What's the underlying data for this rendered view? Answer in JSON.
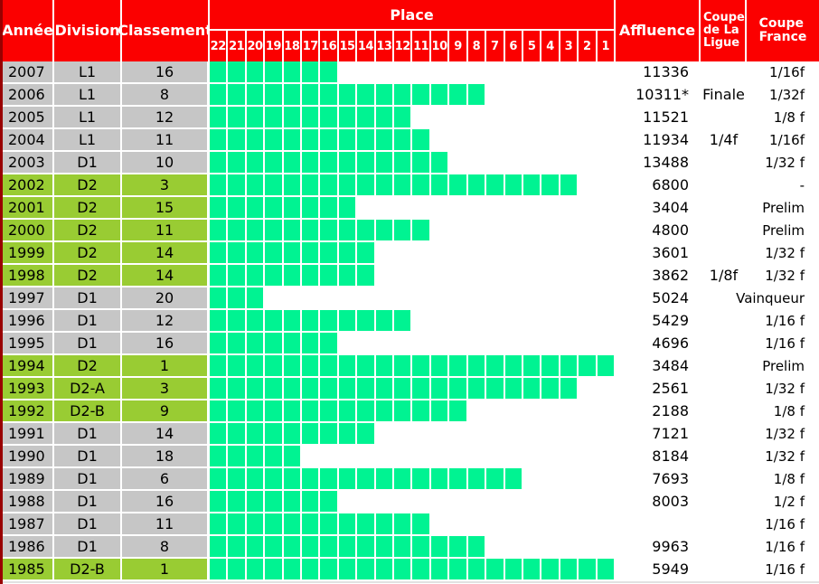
{
  "colors": {
    "header_bg": "#FB0000",
    "header_text": "#FFFFFF",
    "bar_fill": "#00F392",
    "row_division1_bg": "#C6C6C6",
    "row_division2_bg": "#99CC33",
    "left_border": "#990000",
    "grid_line": "#FFFFFF",
    "body_text": "#000000"
  },
  "header": {
    "annee": "Année",
    "division": "Division",
    "classement": "Classement",
    "place": "Place",
    "place_numbers": [
      22,
      21,
      20,
      19,
      18,
      17,
      16,
      15,
      14,
      13,
      12,
      11,
      10,
      9,
      8,
      7,
      6,
      5,
      4,
      3,
      2,
      1
    ],
    "affluence": "Affluence",
    "coupe_ligue_lines": [
      "Coupe",
      "de La",
      "Ligue"
    ],
    "coupe_france_lines": [
      "Coupe",
      "France"
    ]
  },
  "chart_data": {
    "type": "bar",
    "title": "Place",
    "orientation": "horizontal",
    "axis": {
      "label": "Place",
      "range": [
        22,
        1
      ],
      "note": "bar fills cells from place 22 down to the season's classement"
    },
    "rows": [
      {
        "year": "2007",
        "division": "L1",
        "classement": 16,
        "affluence": "11336",
        "coupe_ligue": "",
        "coupe_france": "1/16f"
      },
      {
        "year": "2006",
        "division": "L1",
        "classement": 8,
        "affluence": "10311*",
        "coupe_ligue": "Finale",
        "coupe_france": "1/32f"
      },
      {
        "year": "2005",
        "division": "L1",
        "classement": 12,
        "affluence": "11521",
        "coupe_ligue": "",
        "coupe_france": "1/8 f"
      },
      {
        "year": "2004",
        "division": "L1",
        "classement": 11,
        "affluence": "11934",
        "coupe_ligue": "1/4f",
        "coupe_france": "1/16f"
      },
      {
        "year": "2003",
        "division": "D1",
        "classement": 10,
        "affluence": "13488",
        "coupe_ligue": "",
        "coupe_france": "1/32 f"
      },
      {
        "year": "2002",
        "division": "D2",
        "classement": 3,
        "affluence": "6800",
        "coupe_ligue": "",
        "coupe_france": "-"
      },
      {
        "year": "2001",
        "division": "D2",
        "classement": 15,
        "affluence": "3404",
        "coupe_ligue": "",
        "coupe_france": "Prelim"
      },
      {
        "year": "2000",
        "division": "D2",
        "classement": 11,
        "affluence": "4800",
        "coupe_ligue": "",
        "coupe_france": "Prelim"
      },
      {
        "year": "1999",
        "division": "D2",
        "classement": 14,
        "affluence": "3601",
        "coupe_ligue": "",
        "coupe_france": "1/32 f"
      },
      {
        "year": "1998",
        "division": "D2",
        "classement": 14,
        "affluence": "3862",
        "coupe_ligue": "1/8f",
        "coupe_france": "1/32 f"
      },
      {
        "year": "1997",
        "division": "D1",
        "classement": 20,
        "affluence": "5024",
        "coupe_ligue": "",
        "coupe_france": "Vainqueur"
      },
      {
        "year": "1996",
        "division": "D1",
        "classement": 12,
        "affluence": "5429",
        "coupe_ligue": "",
        "coupe_france": "1/16 f"
      },
      {
        "year": "1995",
        "division": "D1",
        "classement": 16,
        "affluence": "4696",
        "coupe_ligue": "",
        "coupe_france": "1/16 f"
      },
      {
        "year": "1994",
        "division": "D2",
        "classement": 1,
        "affluence": "3484",
        "coupe_ligue": "",
        "coupe_france": "Prelim"
      },
      {
        "year": "1993",
        "division": "D2-A",
        "classement": 3,
        "affluence": "2561",
        "coupe_ligue": "",
        "coupe_france": "1/32 f"
      },
      {
        "year": "1992",
        "division": "D2-B",
        "classement": 9,
        "affluence": "2188",
        "coupe_ligue": "",
        "coupe_france": "1/8 f"
      },
      {
        "year": "1991",
        "division": "D1",
        "classement": 14,
        "affluence": "7121",
        "coupe_ligue": "",
        "coupe_france": "1/32 f"
      },
      {
        "year": "1990",
        "division": "D1",
        "classement": 18,
        "affluence": "8184",
        "coupe_ligue": "",
        "coupe_france": "1/32 f"
      },
      {
        "year": "1989",
        "division": "D1",
        "classement": 6,
        "affluence": "7693",
        "coupe_ligue": "",
        "coupe_france": "1/8 f"
      },
      {
        "year": "1988",
        "division": "D1",
        "classement": 16,
        "affluence": "8003",
        "coupe_ligue": "",
        "coupe_france": "1/2 f"
      },
      {
        "year": "1987",
        "division": "D1",
        "classement": 11,
        "affluence": "",
        "coupe_ligue": "",
        "coupe_france": "1/16 f"
      },
      {
        "year": "1986",
        "division": "D1",
        "classement": 8,
        "affluence": "9963",
        "coupe_ligue": "",
        "coupe_france": "1/16 f"
      },
      {
        "year": "1985",
        "division": "D2-B",
        "classement": 1,
        "affluence": "5949",
        "coupe_ligue": "",
        "coupe_france": "1/16 f"
      }
    ]
  }
}
